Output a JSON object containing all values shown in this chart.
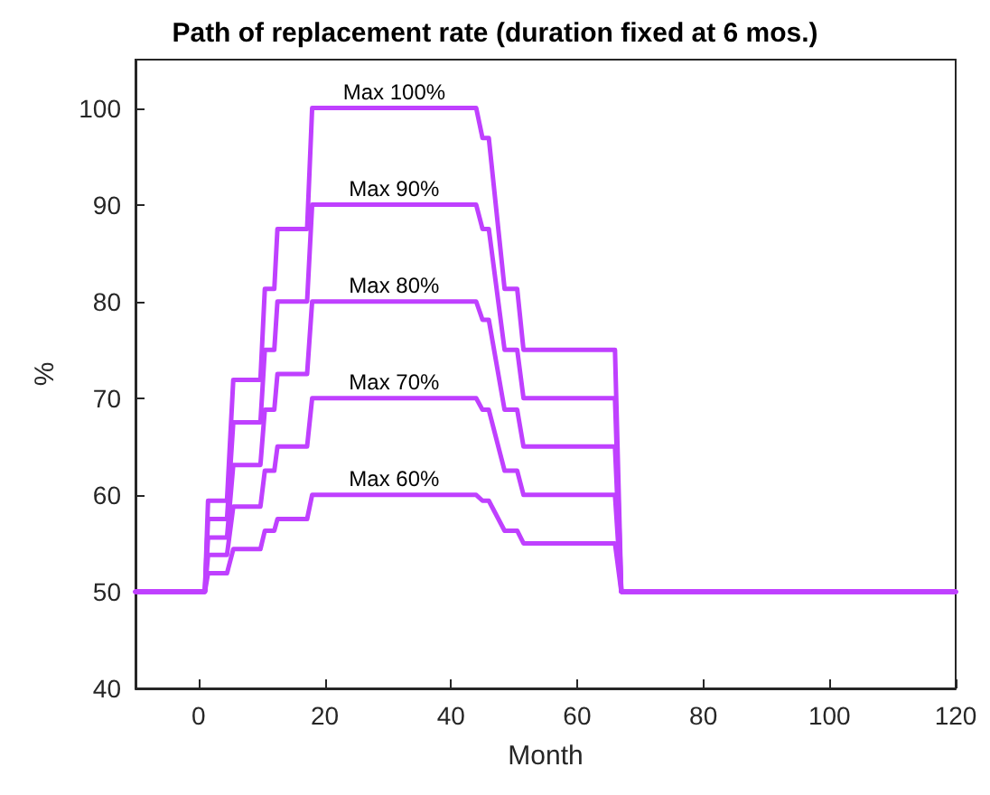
{
  "chart_data": {
    "type": "line",
    "title": "Path of replacement rate (duration fixed at 6 mos.)",
    "xlabel": "Month",
    "ylabel": "%",
    "x": [
      -10,
      1,
      1.5,
      4.5,
      5.5,
      9.8,
      10.5,
      12,
      12.5,
      17.2,
      18,
      31,
      44,
      45,
      46,
      48.5,
      50.5,
      51.5,
      66,
      67,
      120
    ],
    "series": [
      {
        "name": "Max 100%",
        "color": "#bf40ff",
        "values": [
          50,
          50,
          59.4,
          59.4,
          71.9,
          71.9,
          81.3,
          81.3,
          87.5,
          87.5,
          100,
          100,
          100,
          96.9,
          96.9,
          81.3,
          81.3,
          75,
          75,
          50,
          50
        ]
      },
      {
        "name": "Max 90%",
        "color": "#bf40ff",
        "values": [
          50,
          50,
          57.5,
          57.5,
          67.5,
          67.5,
          75,
          75,
          80,
          80,
          90,
          90,
          90,
          87.5,
          87.5,
          75,
          75,
          70,
          70,
          50,
          50
        ]
      },
      {
        "name": "Max 80%",
        "color": "#bf40ff",
        "values": [
          50,
          50,
          55.6,
          55.6,
          63.1,
          63.1,
          68.8,
          68.8,
          72.5,
          72.5,
          80,
          80,
          80,
          78.1,
          78.1,
          68.8,
          68.8,
          65,
          65,
          50,
          50
        ]
      },
      {
        "name": "Max 70%",
        "color": "#bf40ff",
        "values": [
          50,
          50,
          53.8,
          53.8,
          58.8,
          58.8,
          62.5,
          62.5,
          65,
          65,
          70,
          70,
          70,
          68.8,
          68.8,
          62.5,
          62.5,
          60,
          60,
          50,
          50
        ]
      },
      {
        "name": "Max 60%",
        "color": "#bf40ff",
        "values": [
          50,
          50,
          51.9,
          51.9,
          54.4,
          54.4,
          56.3,
          56.3,
          57.5,
          57.5,
          60,
          60,
          60,
          59.4,
          59.4,
          56.3,
          56.3,
          55,
          55,
          50,
          50
        ]
      }
    ],
    "xlim": [
      -10,
      120
    ],
    "xticks": [
      0,
      20,
      40,
      60,
      80,
      100,
      120
    ],
    "ylim": [
      40,
      105
    ],
    "yticks": [
      40,
      50,
      60,
      70,
      80,
      90,
      100
    ],
    "grid": false,
    "legend": false,
    "marker": "none",
    "line_style": "solid"
  }
}
